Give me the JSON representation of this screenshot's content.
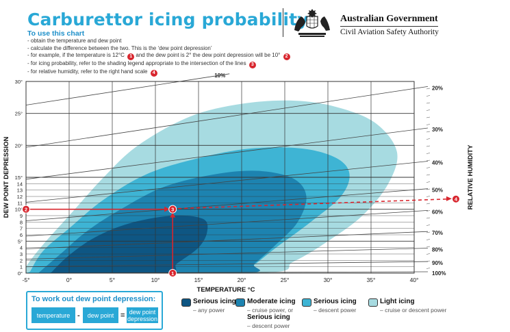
{
  "header": {
    "title": "Carburettor icing probability",
    "use_heading": "To use this chart",
    "instructions": [
      "- obtain the temperature and dew point",
      "- calculate the difference between the two. This is the ‘dew point depression’",
      "- for example, if the temperature is 12°C",
      "and the dew point is 2° the dew point depression will be 10°",
      "- for icing probability, refer to the shading legend appropriate to the intersection of the lines",
      "- for relative humidity, refer to the right hand scale"
    ],
    "markers": [
      "1",
      "2",
      "3",
      "4"
    ]
  },
  "gov": {
    "name": "Australian Government",
    "agency": "Civil Aviation Safety Authority",
    "crest_icon": "commonwealth-coat-of-arms-icon"
  },
  "chart_data": {
    "type": "area",
    "xlabel": "TEMPERATURE °C",
    "ylabel": "DEW POINT DEPRESSION",
    "right_label": "RELATIVE HUMIDITY",
    "xlim": [
      -5,
      40
    ],
    "ylim": [
      0,
      30
    ],
    "x_ticks": [
      "-5°",
      "0°",
      "5°",
      "10°",
      "15°",
      "20°",
      "25°",
      "30°",
      "35°",
      "40°"
    ],
    "y_ticks": [
      {
        "v": 0,
        "label": "0°"
      },
      {
        "v": 1,
        "label": "1"
      },
      {
        "v": 2,
        "label": "2"
      },
      {
        "v": 3,
        "label": "3"
      },
      {
        "v": 4,
        "label": "4"
      },
      {
        "v": 5,
        "label": "5°"
      },
      {
        "v": 6,
        "label": "6"
      },
      {
        "v": 7,
        "label": "7"
      },
      {
        "v": 8,
        "label": "8"
      },
      {
        "v": 9,
        "label": "9"
      },
      {
        "v": 10,
        "label": "10°"
      },
      {
        "v": 11,
        "label": "11"
      },
      {
        "v": 12,
        "label": "12"
      },
      {
        "v": 13,
        "label": "13"
      },
      {
        "v": 14,
        "label": "14"
      },
      {
        "v": 15,
        "label": "15°"
      },
      {
        "v": 20,
        "label": "20°"
      },
      {
        "v": 25,
        "label": "25°"
      },
      {
        "v": 30,
        "label": "30°"
      }
    ],
    "humidity_lines": [
      {
        "label": "10%",
        "points": [
          [
            -5,
            26.3
          ],
          [
            17,
            31.2
          ]
        ]
      },
      {
        "label": "20%",
        "points": [
          [
            -5,
            19.7
          ],
          [
            40,
            29
          ]
        ]
      },
      {
        "label": "30%",
        "points": [
          [
            -5,
            14.7
          ],
          [
            40,
            22.5
          ]
        ]
      },
      {
        "label": "40%",
        "points": [
          [
            -5,
            11.1
          ],
          [
            40,
            17.3
          ]
        ]
      },
      {
        "label": "50%",
        "points": [
          [
            -5,
            8.2
          ],
          [
            40,
            13
          ]
        ]
      },
      {
        "label": "60%",
        "points": [
          [
            -5,
            5.8
          ],
          [
            40,
            9.6
          ]
        ]
      },
      {
        "label": "70%",
        "points": [
          [
            -5,
            3.8
          ],
          [
            40,
            6.3
          ]
        ]
      },
      {
        "label": "80%",
        "points": [
          [
            -5,
            2.2
          ],
          [
            40,
            3.7
          ]
        ]
      },
      {
        "label": "90%",
        "points": [
          [
            -5,
            1
          ],
          [
            40,
            1.6
          ]
        ]
      },
      {
        "label": "100%",
        "points": [
          [
            -5,
            0
          ],
          [
            40,
            0
          ]
        ]
      }
    ],
    "regions": [
      {
        "name": "Light icing",
        "color": "#a7dbe1",
        "points": [
          [
            -5,
            1
          ],
          [
            -3,
            4.5
          ],
          [
            0,
            9
          ],
          [
            4,
            15
          ],
          [
            8,
            20
          ],
          [
            14,
            24.5
          ],
          [
            20,
            26.5
          ],
          [
            26,
            27
          ],
          [
            31,
            26
          ],
          [
            35.5,
            23.5
          ],
          [
            38,
            19
          ],
          [
            37,
            14
          ],
          [
            34,
            9
          ],
          [
            30,
            5
          ],
          [
            26,
            1.8
          ],
          [
            22,
            0
          ],
          [
            -5,
            0
          ]
        ]
      },
      {
        "name": "Serious icing",
        "color": "#3eb4d4",
        "points": [
          [
            -4.5,
            0.3
          ],
          [
            -3,
            3.5
          ],
          [
            0,
            7
          ],
          [
            4,
            11.5
          ],
          [
            9,
            15.5
          ],
          [
            15,
            18
          ],
          [
            21,
            19.5
          ],
          [
            27,
            19.5
          ],
          [
            31,
            18
          ],
          [
            32.5,
            15.5
          ],
          [
            31.5,
            12
          ],
          [
            28,
            8
          ],
          [
            24,
            4
          ],
          [
            21,
            0.8
          ],
          [
            20,
            0
          ],
          [
            -4.5,
            0
          ]
        ]
      },
      {
        "name": "Moderate icing",
        "color": "#1d83b0",
        "points": [
          [
            -3.5,
            0.1
          ],
          [
            -1,
            3
          ],
          [
            2,
            6.5
          ],
          [
            6,
            10
          ],
          [
            11,
            13.5
          ],
          [
            17,
            15.5
          ],
          [
            22,
            16
          ],
          [
            26,
            14.8
          ],
          [
            27.5,
            12
          ],
          [
            26.5,
            8
          ],
          [
            24,
            4.5
          ],
          [
            21.5,
            1.5
          ],
          [
            20,
            0
          ],
          [
            -3.5,
            0
          ]
        ]
      },
      {
        "name": "Serious icing",
        "color": "#0e5683",
        "points": [
          [
            -2,
            0.2
          ],
          [
            0,
            2.8
          ],
          [
            3,
            5.6
          ],
          [
            7,
            7.8
          ],
          [
            12,
            9
          ],
          [
            15.5,
            8.5
          ],
          [
            16,
            6.5
          ],
          [
            15,
            4
          ],
          [
            12.5,
            1.5
          ],
          [
            11,
            0
          ],
          [
            -2,
            0
          ]
        ]
      }
    ],
    "example": {
      "temperature": 12,
      "dew_point": 2,
      "depression": 10
    }
  },
  "formula_box": {
    "title": "To work out dew point depression:",
    "temperature": "temperature",
    "minus": "-",
    "dew_point": "dew point",
    "equals": "=",
    "result": "dew point depression"
  },
  "legend": [
    {
      "title": "Serious icing",
      "sub": "– any power",
      "color": "#0e5683"
    },
    {
      "title": "Moderate icing",
      "sub": "– cruise power, or",
      "title2": "Serious icing",
      "sub2": "– descent power",
      "color": "#1d83b0"
    },
    {
      "title": "Serious icing",
      "sub": "– descent power",
      "color": "#3eb4d4"
    },
    {
      "title": "Light icing",
      "sub": "– cruise or descent power",
      "color": "#a7dbe1"
    }
  ],
  "colors": {
    "accent": "#29a8d6",
    "marker": "#d8262e"
  }
}
